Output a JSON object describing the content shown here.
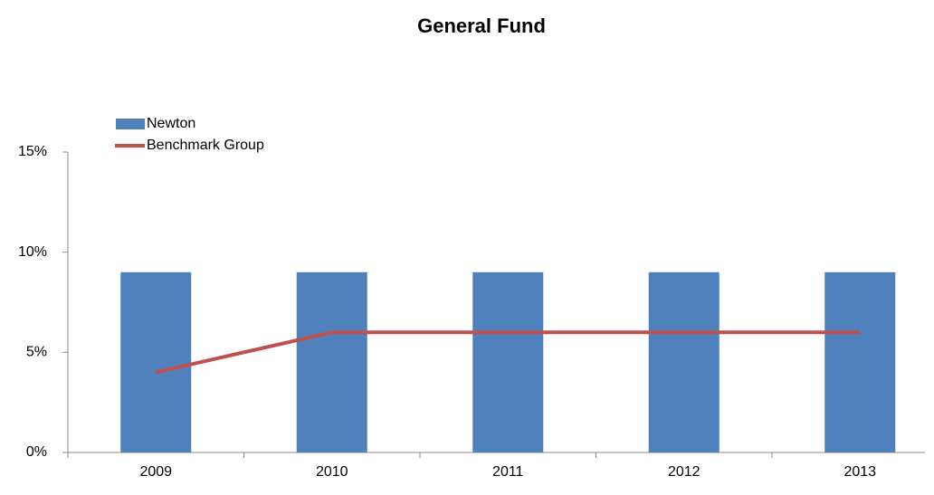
{
  "chart_data": {
    "type": "combo",
    "title": "General Fund",
    "categories": [
      "2009",
      "2010",
      "2011",
      "2012",
      "2013"
    ],
    "series": [
      {
        "name": "Newton",
        "type": "bar",
        "color": "#4f81bd",
        "values": [
          9,
          9,
          9,
          9,
          9
        ]
      },
      {
        "name": "Benchmark Group",
        "type": "line",
        "color": "#c0504d",
        "values": [
          4,
          6,
          6,
          6,
          6
        ]
      }
    ],
    "ylim": [
      0,
      15
    ],
    "yticks": [
      {
        "value": 0,
        "label": "0%"
      },
      {
        "value": 5,
        "label": "5%"
      },
      {
        "value": 10,
        "label": "10%"
      },
      {
        "value": 15,
        "label": "15%"
      }
    ],
    "legend": "top-left"
  }
}
